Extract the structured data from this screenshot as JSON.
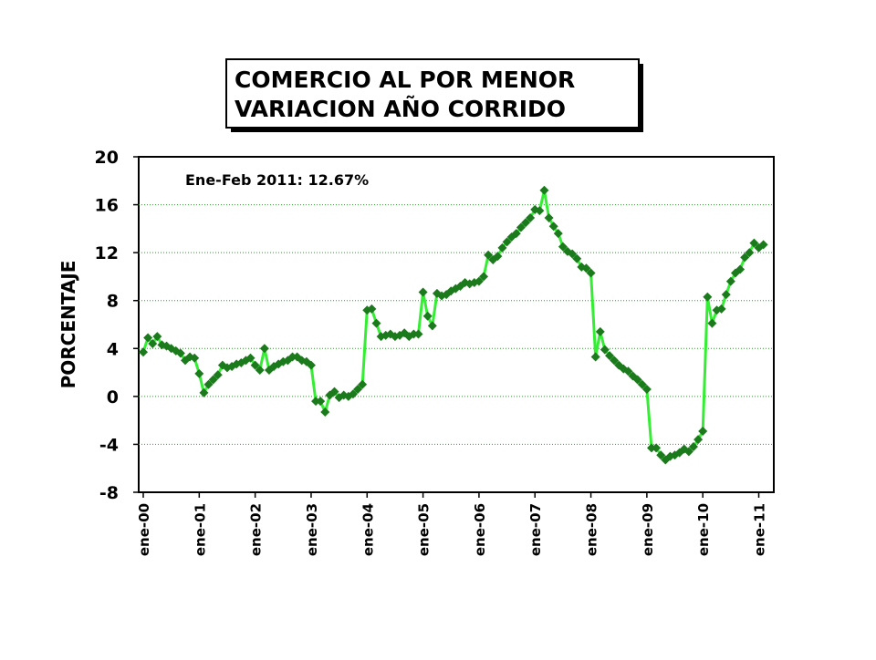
{
  "chart_data": {
    "type": "line",
    "title": "COMERCIO AL POR MENOR",
    "subtitle": "VARIACION AÑO CORRIDO",
    "annotation": "Ene-Feb 2011: 12.67%",
    "y_label": "PORCENTAJE",
    "categories": [
      "ene-00",
      null,
      null,
      null,
      null,
      null,
      null,
      null,
      null,
      null,
      null,
      null,
      "ene-01",
      null,
      null,
      null,
      null,
      null,
      null,
      null,
      null,
      null,
      null,
      null,
      "ene-02",
      null,
      null,
      null,
      null,
      null,
      null,
      null,
      null,
      null,
      null,
      null,
      "ene-03",
      null,
      null,
      null,
      null,
      null,
      null,
      null,
      null,
      null,
      null,
      null,
      "ene-04",
      null,
      null,
      null,
      null,
      null,
      null,
      null,
      null,
      null,
      null,
      null,
      "ene-05",
      null,
      null,
      null,
      null,
      null,
      null,
      null,
      null,
      null,
      null,
      null,
      "ene-06",
      null,
      null,
      null,
      null,
      null,
      null,
      null,
      null,
      null,
      null,
      null,
      "ene-07",
      null,
      null,
      null,
      null,
      null,
      null,
      null,
      null,
      null,
      null,
      null,
      "ene-08",
      null,
      null,
      null,
      null,
      null,
      null,
      null,
      null,
      null,
      null,
      null,
      "ene-09",
      null,
      null,
      null,
      null,
      null,
      null,
      null,
      null,
      null,
      null,
      null,
      "ene-10",
      null,
      null,
      null,
      null,
      null,
      null,
      null,
      null,
      null,
      null,
      null,
      "ene-11",
      null
    ],
    "series": [
      {
        "line_color": "#33ee33",
        "color": "#1b7a1b",
        "values": [
          3.7,
          4.9,
          4.4,
          5.0,
          4.3,
          4.2,
          4.0,
          3.8,
          3.6,
          3.0,
          3.3,
          3.2,
          1.9,
          0.3,
          1.0,
          1.4,
          1.8,
          2.6,
          2.4,
          2.5,
          2.7,
          2.8,
          3.0,
          3.2,
          2.6,
          2.2,
          4.0,
          2.2,
          2.5,
          2.7,
          2.9,
          3.0,
          3.3,
          3.3,
          3.0,
          2.9,
          2.6,
          -0.4,
          -0.4,
          -1.3,
          0.1,
          0.4,
          -0.1,
          0.1,
          0.0,
          0.2,
          0.6,
          1.0,
          7.2,
          7.3,
          6.1,
          5.0,
          5.1,
          5.2,
          5.0,
          5.1,
          5.3,
          5.0,
          5.2,
          5.2,
          8.7,
          6.7,
          5.9,
          8.6,
          8.4,
          8.5,
          8.8,
          9.0,
          9.2,
          9.5,
          9.4,
          9.5,
          9.6,
          10.0,
          11.8,
          11.4,
          11.7,
          12.4,
          12.9,
          13.3,
          13.6,
          14.1,
          14.5,
          14.9,
          15.6,
          15.5,
          17.2,
          14.9,
          14.2,
          13.6,
          12.5,
          12.1,
          11.9,
          11.5,
          10.8,
          10.7,
          10.3,
          3.3,
          5.4,
          3.9,
          3.4,
          3.0,
          2.6,
          2.3,
          2.1,
          1.7,
          1.4,
          1.0,
          0.6,
          -4.3,
          -4.3,
          -4.9,
          -5.3,
          -5.0,
          -4.9,
          -4.7,
          -4.4,
          -4.6,
          -4.2,
          -3.6,
          -2.9,
          8.3,
          6.1,
          7.2,
          7.3,
          8.5,
          9.6,
          10.3,
          10.6,
          11.6,
          12.0,
          12.8,
          12.4,
          12.67
        ]
      }
    ],
    "ylim": [
      -8,
      20
    ],
    "yticks": [
      -8,
      -4,
      0,
      4,
      8,
      12,
      16,
      20
    ],
    "grid": true
  }
}
